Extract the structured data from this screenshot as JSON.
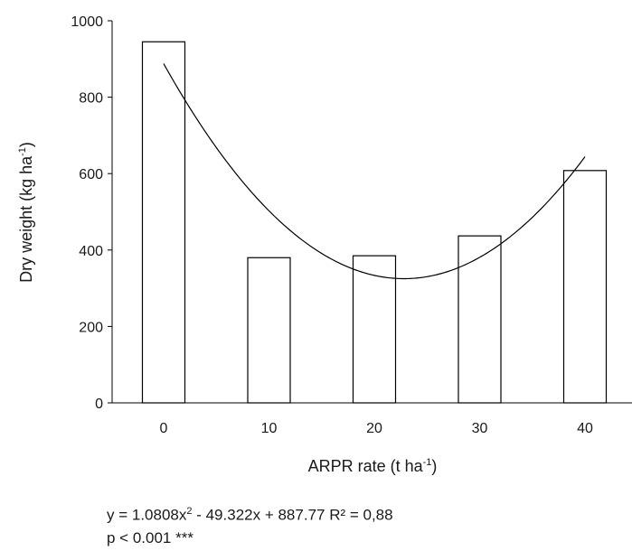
{
  "chart_data": {
    "type": "bar",
    "categories": [
      "0",
      "10",
      "20",
      "30",
      "40"
    ],
    "x": [
      0,
      10,
      20,
      30,
      40
    ],
    "values": [
      945,
      380,
      385,
      437,
      608
    ],
    "ylim": [
      0,
      1000
    ],
    "yticks": [
      "0",
      "200",
      "400",
      "600",
      "800",
      "1000"
    ],
    "ylabel": {
      "main": "Dry weight  (kg ha",
      "sup": "-1",
      "end": ")"
    },
    "xlabel": {
      "main": "ARPR rate (t ha",
      "sup": "-1",
      "end": ")"
    },
    "trendline": {
      "type": "polynomial",
      "a": 1.0808,
      "b": -49.322,
      "c": 887.77,
      "x_range": [
        0,
        40
      ]
    },
    "grid": false,
    "legend": "none",
    "bar_fill": "#ffffff",
    "bar_stroke": "#000000"
  },
  "equation": {
    "prefix": "y = 1.0808x",
    "sup": "2",
    "rest": " - 49.322x + 887.77  R² = 0,88"
  },
  "pvalue": "p < 0.001 ***"
}
